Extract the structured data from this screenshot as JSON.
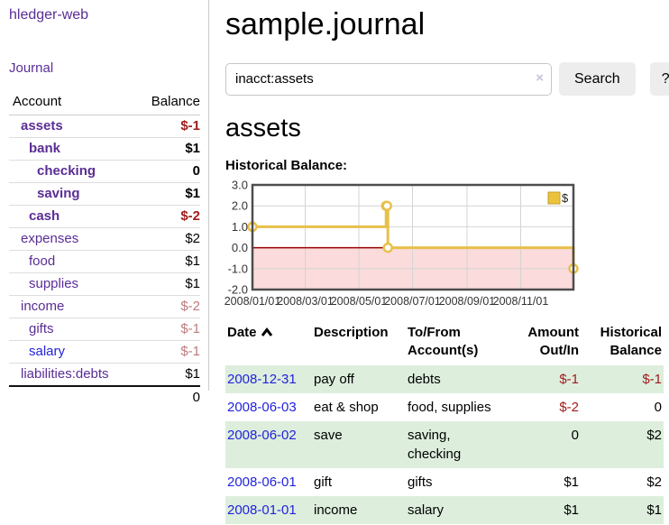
{
  "app": {
    "title": "hledger-web",
    "nav_journal": "Journal"
  },
  "sidebar": {
    "columns": {
      "account": "Account",
      "balance": "Balance"
    },
    "accounts": [
      {
        "name": "assets",
        "indent": 1,
        "bold": true,
        "balance": "$-1",
        "balance_style": "neg-strong"
      },
      {
        "name": "bank",
        "indent": 2,
        "bold": true,
        "balance": "$1",
        "balance_style": "normal"
      },
      {
        "name": "checking",
        "indent": 3,
        "bold": true,
        "balance": "0",
        "balance_style": "normal"
      },
      {
        "name": "saving",
        "indent": 3,
        "bold": true,
        "balance": "$1",
        "balance_style": "normal"
      },
      {
        "name": "cash",
        "indent": 2,
        "bold": true,
        "balance": "$-2",
        "balance_style": "neg-strong"
      },
      {
        "name": "expenses",
        "indent": 1,
        "bold": false,
        "balance": "$2",
        "balance_style": "normal"
      },
      {
        "name": "food",
        "indent": 2,
        "bold": false,
        "balance": "$1",
        "balance_style": "normal"
      },
      {
        "name": "supplies",
        "indent": 2,
        "bold": false,
        "balance": "$1",
        "balance_style": "normal"
      },
      {
        "name": "income",
        "indent": 1,
        "bold": false,
        "balance": "$-2",
        "balance_style": "neg-muted"
      },
      {
        "name": "gifts",
        "indent": 2,
        "bold": false,
        "balance": "$-1",
        "balance_style": "neg-muted"
      },
      {
        "name": "salary",
        "indent": 2,
        "bold": false,
        "balance": "$-1",
        "balance_style": "neg-muted",
        "link_style": "blue"
      },
      {
        "name": "liabilities:debts",
        "indent": 1,
        "bold": false,
        "balance": "$1",
        "balance_style": "normal"
      }
    ],
    "total": "0"
  },
  "header": {
    "title": "sample.journal"
  },
  "search": {
    "value": "inacct:assets",
    "clear_icon": "×",
    "button_label": "Search",
    "help_label": "?"
  },
  "account_page": {
    "heading": "assets",
    "chart_label": "Historical Balance:"
  },
  "chart_data": {
    "type": "line",
    "title": "Historical Balance",
    "step": true,
    "series": [
      {
        "name": "$",
        "points": [
          {
            "date": "2008-01-01",
            "value": 1
          },
          {
            "date": "2008-06-01",
            "value": 2
          },
          {
            "date": "2008-06-02",
            "value": 2
          },
          {
            "date": "2008-06-03",
            "value": 0
          },
          {
            "date": "2008-12-31",
            "value": -1
          }
        ]
      }
    ],
    "x_range": [
      "2008-01-01",
      "2008-12-31"
    ],
    "xticks": [
      "2008/01/01",
      "2008/03/01",
      "2008/05/01",
      "2008/07/01",
      "2008/09/01",
      "2008/11/01"
    ],
    "yticks": [
      3.0,
      2.0,
      1.0,
      0.0,
      -1.0,
      -2.0
    ],
    "ylim": [
      -2.0,
      3.0
    ],
    "grid": true,
    "legend": {
      "label": "$",
      "position": "top-right"
    },
    "colors": {
      "line": "#e7c04a",
      "marker_fill": "#ffffff",
      "negative_fill": "#fbdbdb",
      "zero_line": "#990000",
      "border": "#4d4d4d",
      "gridline": "#d4d4d4",
      "legend_fill": "#ecc23d",
      "legend_border": "#c5a02a"
    }
  },
  "transactions": {
    "columns": [
      {
        "label": "Date",
        "sorted": "ascending"
      },
      {
        "label": "Description"
      },
      {
        "label": "To/From Account(s)"
      },
      {
        "label": "Amount Out/In"
      },
      {
        "label": "Historical Balance"
      }
    ],
    "rows": [
      {
        "date": "2008-12-31",
        "description": "pay off",
        "accounts": "debts",
        "amount": "$-1",
        "balance": "$-1"
      },
      {
        "date": "2008-06-03",
        "description": "eat & shop",
        "accounts": "food, supplies",
        "amount": "$-2",
        "balance": "0"
      },
      {
        "date": "2008-06-02",
        "description": "save",
        "accounts": "saving, checking",
        "amount": "0",
        "balance": "$2"
      },
      {
        "date": "2008-06-01",
        "description": "gift",
        "accounts": "gifts",
        "amount": "$1",
        "balance": "$2"
      },
      {
        "date": "2008-01-01",
        "description": "income",
        "accounts": "salary",
        "amount": "$1",
        "balance": "$1"
      }
    ]
  }
}
